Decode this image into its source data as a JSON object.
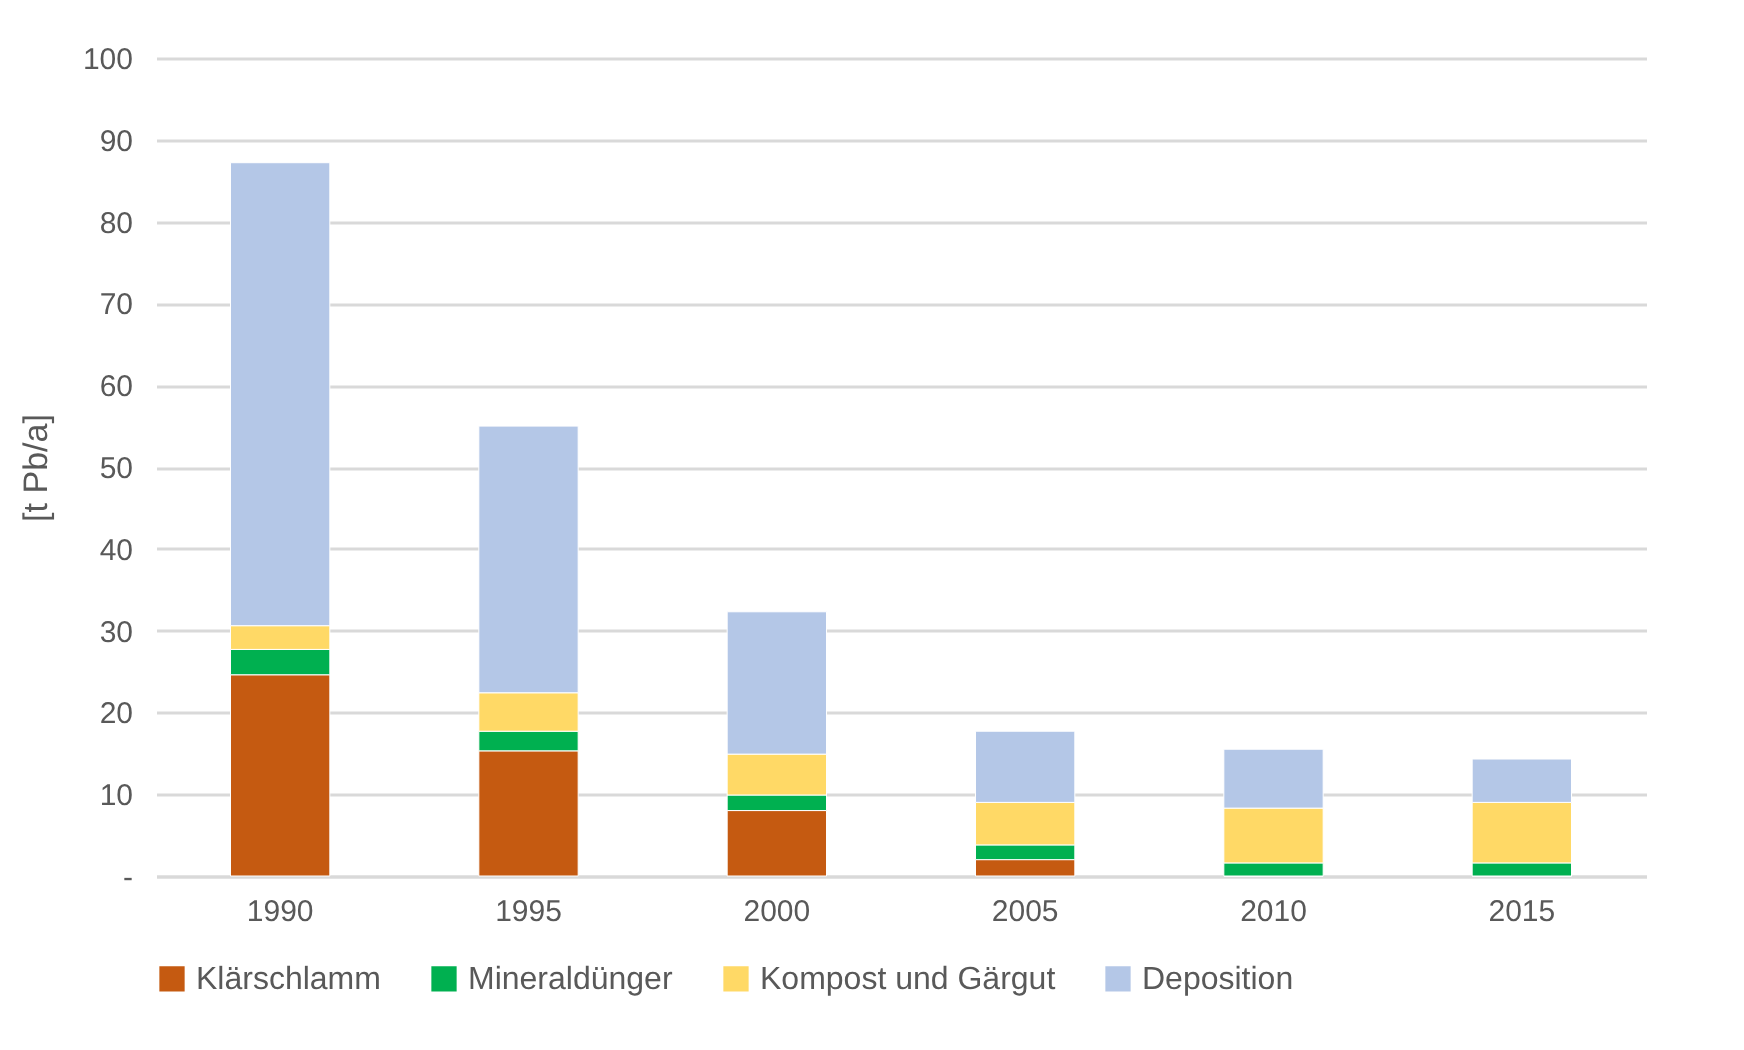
{
  "chart_data": {
    "type": "bar",
    "stacked": true,
    "ylabel": "[t Pb/a]",
    "categories": [
      "1990",
      "1995",
      "2000",
      "2005",
      "2010",
      "2015"
    ],
    "series": [
      {
        "name": "Klärschlamm",
        "color": "#c55a11",
        "values": [
          24.6,
          15.3,
          8.0,
          2.0,
          0,
          0
        ]
      },
      {
        "name": "Mineraldünger",
        "color": "#00b050",
        "values": [
          3.1,
          2.4,
          1.9,
          1.8,
          1.6,
          1.6
        ]
      },
      {
        "name": "Kompost und Gärgut",
        "color": "#ffd966",
        "values": [
          2.9,
          4.7,
          5.0,
          5.2,
          6.7,
          7.4
        ]
      },
      {
        "name": "Deposition",
        "color": "#b4c7e7",
        "values": [
          56.6,
          32.6,
          17.4,
          8.7,
          7.2,
          5.3
        ]
      }
    ],
    "ylim": [
      0,
      100
    ],
    "yticks": [
      {
        "value": 0,
        "label": "-"
      },
      10,
      20,
      30,
      40,
      50,
      60,
      70,
      80,
      90,
      100
    ],
    "grid": "y",
    "legend": "bottom"
  }
}
